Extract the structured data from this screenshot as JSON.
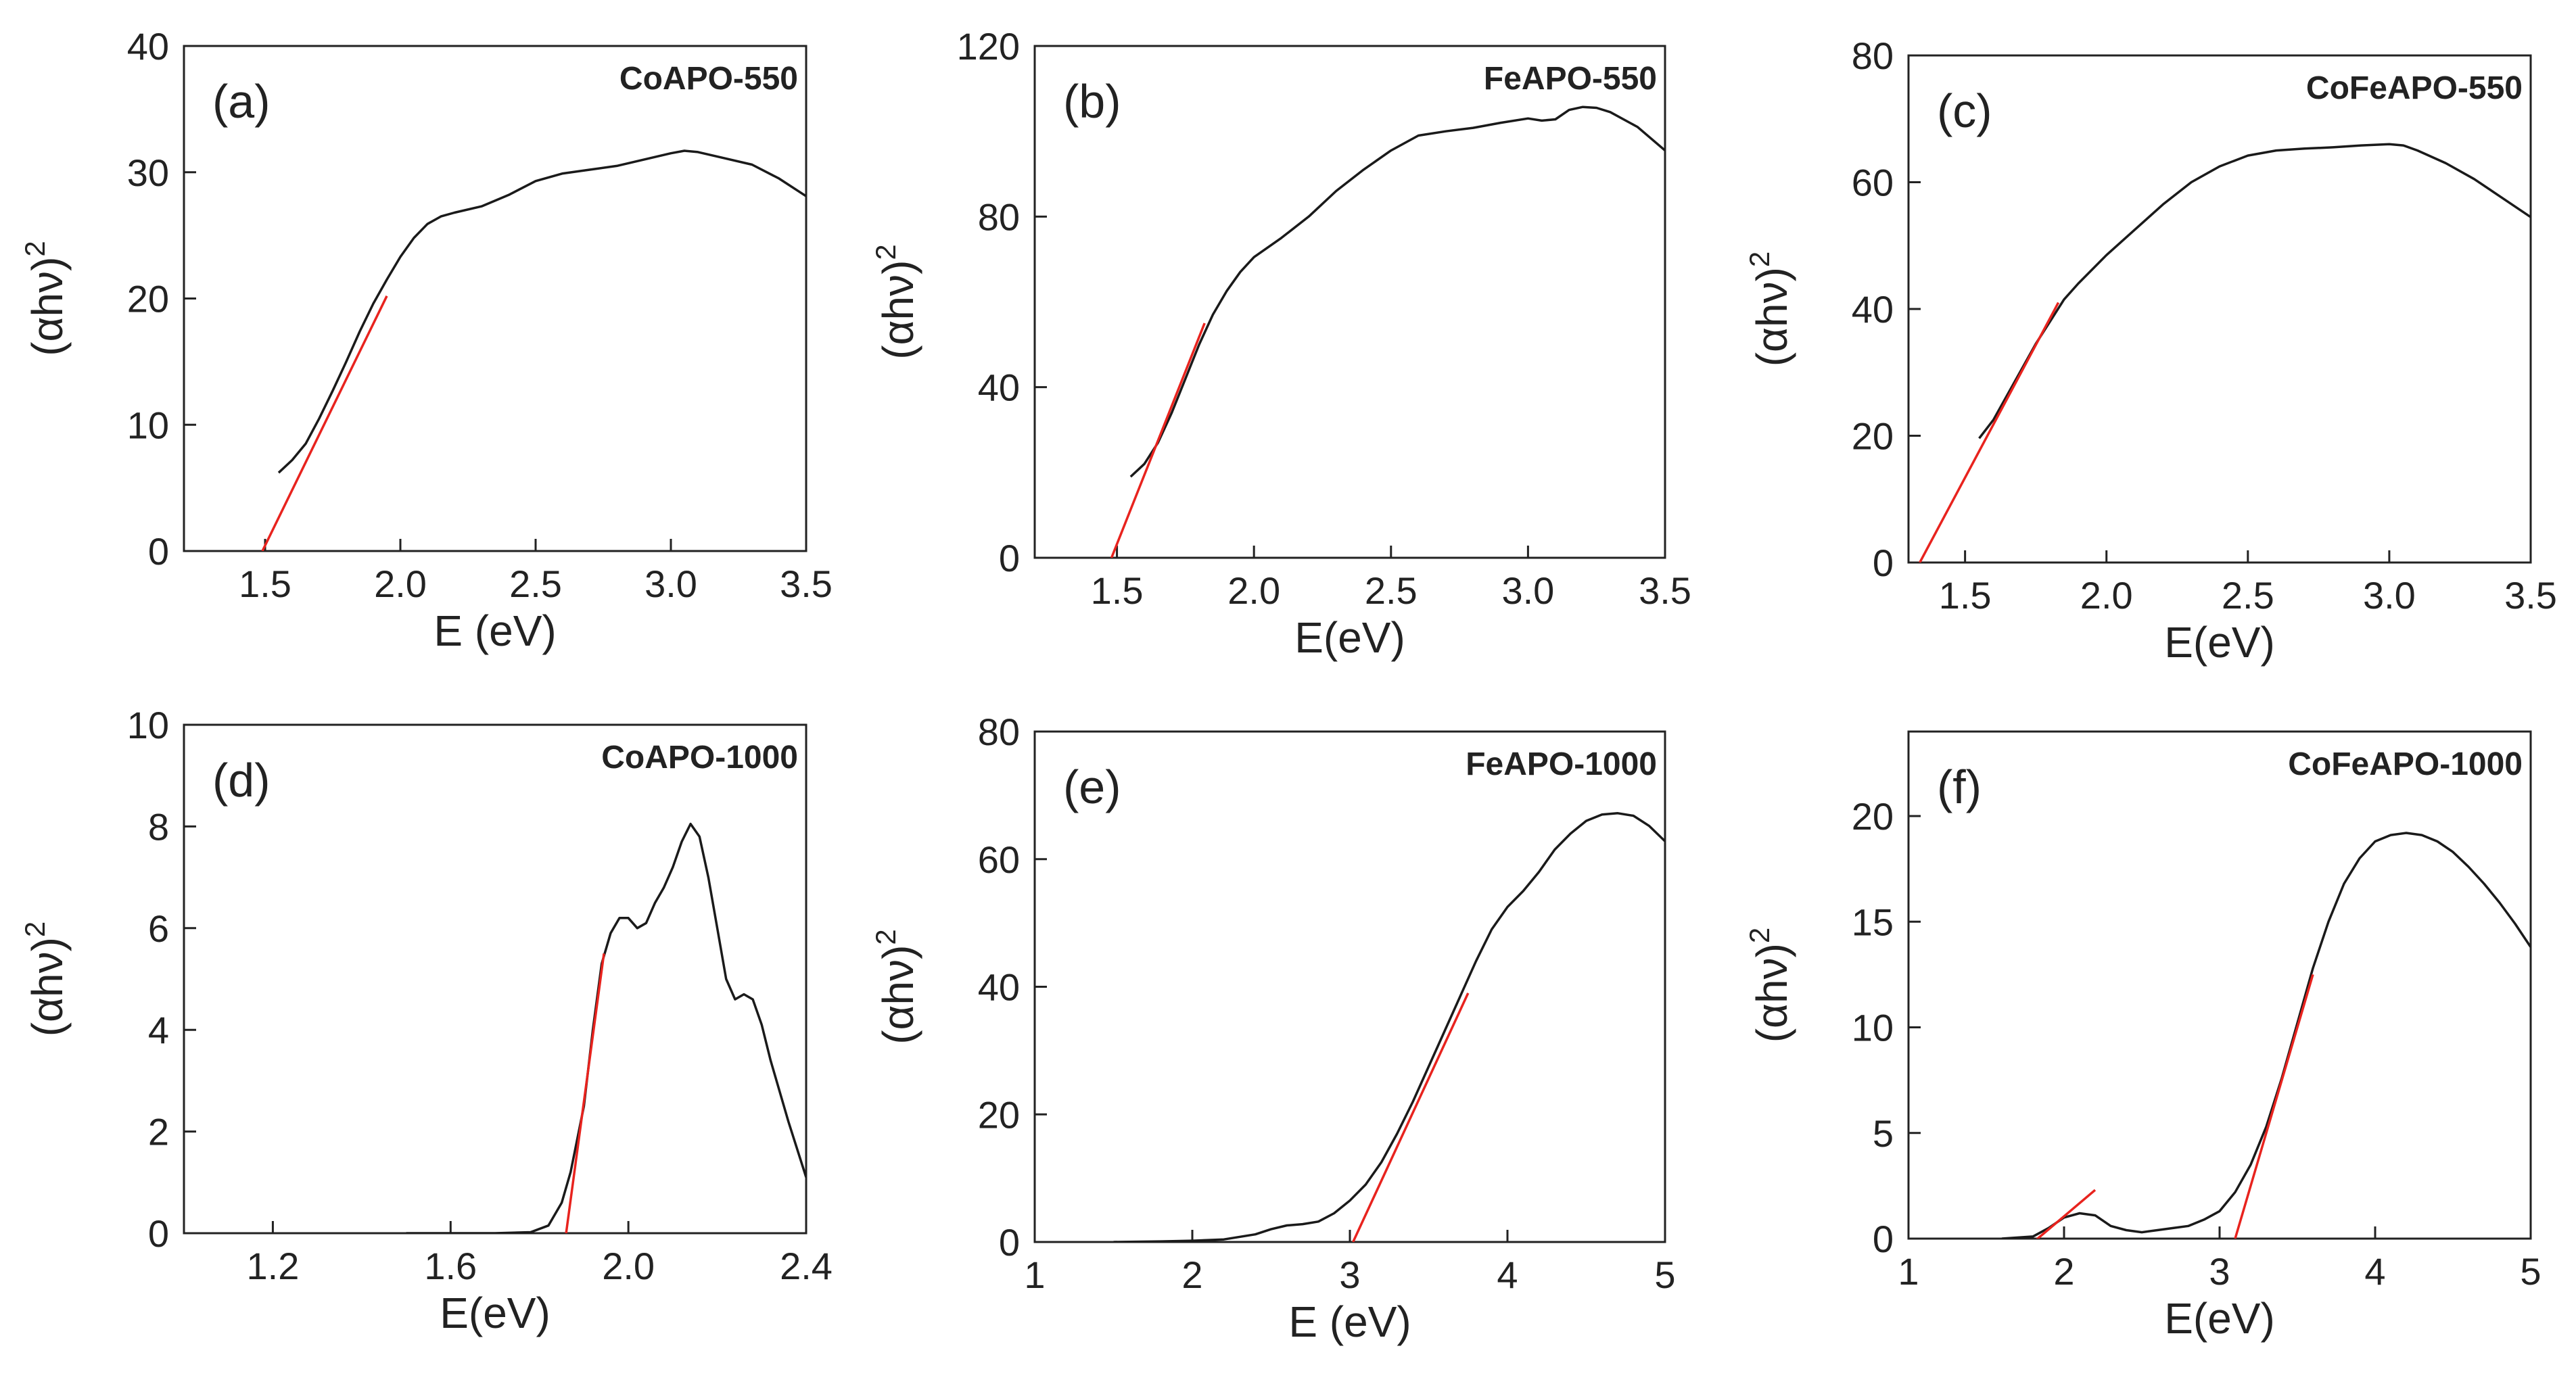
{
  "chart_data": [
    {
      "type": "line",
      "panel": "(a)",
      "title": "CoAPO-550",
      "xlabel": "E (eV)",
      "ylabel": "(αhν)",
      "ylabel_sup": "2",
      "xlim": [
        1.2,
        3.5
      ],
      "ylim": [
        0,
        40
      ],
      "xticks": [
        1.5,
        2.0,
        2.5,
        3.0,
        3.5
      ],
      "xtick_labels": [
        "1.5",
        "2.0",
        "2.5",
        "3.0",
        "3.5"
      ],
      "yticks": [
        0,
        10,
        20,
        30,
        40
      ],
      "ytick_labels": [
        "0",
        "10",
        "20",
        "30",
        "40"
      ],
      "series": [
        {
          "name": "CoAPO-550",
          "color": "#1a1a1a",
          "x": [
            1.55,
            1.6,
            1.65,
            1.7,
            1.75,
            1.8,
            1.85,
            1.9,
            1.95,
            2.0,
            2.05,
            2.1,
            2.15,
            2.2,
            2.3,
            2.4,
            2.5,
            2.6,
            2.7,
            2.8,
            2.9,
            3.0,
            3.05,
            3.1,
            3.2,
            3.3,
            3.4,
            3.5
          ],
          "y": [
            6.2,
            7.2,
            8.5,
            10.5,
            12.7,
            15.0,
            17.4,
            19.6,
            21.5,
            23.3,
            24.8,
            25.9,
            26.5,
            26.8,
            27.3,
            28.2,
            29.3,
            29.9,
            30.2,
            30.5,
            31.0,
            31.5,
            31.7,
            31.6,
            31.1,
            30.6,
            29.5,
            28.1
          ]
        },
        {
          "name": "Tangent",
          "color": "#e8231e",
          "x": [
            1.49,
            1.95
          ],
          "y": [
            0.0,
            20.2
          ]
        }
      ]
    },
    {
      "type": "line",
      "panel": "(b)",
      "title": "FeAPO-550",
      "xlabel": "E(eV)",
      "ylabel": "(αhν)",
      "ylabel_sup": "2",
      "xlim": [
        1.2,
        3.5
      ],
      "ylim": [
        0,
        120
      ],
      "xticks": [
        1.5,
        2.0,
        2.5,
        3.0,
        3.5
      ],
      "xtick_labels": [
        "1.5",
        "2.0",
        "2.5",
        "3.0",
        "3.5"
      ],
      "yticks": [
        0,
        40,
        80,
        120
      ],
      "ytick_labels": [
        "0",
        "40",
        "80",
        "120"
      ],
      "series": [
        {
          "name": "FeAPO-550",
          "color": "#1a1a1a",
          "x": [
            1.55,
            1.6,
            1.65,
            1.7,
            1.75,
            1.8,
            1.85,
            1.9,
            1.95,
            2.0,
            2.1,
            2.2,
            2.3,
            2.4,
            2.5,
            2.6,
            2.7,
            2.8,
            2.9,
            3.0,
            3.05,
            3.1,
            3.15,
            3.2,
            3.25,
            3.3,
            3.4,
            3.5
          ],
          "y": [
            19.0,
            22.0,
            27.0,
            34.0,
            42.0,
            50.0,
            57.0,
            62.5,
            67.0,
            70.5,
            75.0,
            80.0,
            86.0,
            91.0,
            95.5,
            99.0,
            100.0,
            100.8,
            102.0,
            103.0,
            102.5,
            102.8,
            105.0,
            105.7,
            105.5,
            104.5,
            101.0,
            95.5
          ]
        },
        {
          "name": "Tangent",
          "color": "#e8231e",
          "x": [
            1.48,
            1.82
          ],
          "y": [
            0.0,
            55.0
          ]
        }
      ]
    },
    {
      "type": "line",
      "panel": "(c)",
      "title": "CoFeAPO-550",
      "xlabel": "E(eV)",
      "ylabel": "(αhν)",
      "ylabel_sup": "2",
      "xlim": [
        1.3,
        3.5
      ],
      "ylim": [
        0,
        80
      ],
      "xticks": [
        1.5,
        2.0,
        2.5,
        3.0,
        3.5
      ],
      "xtick_labels": [
        "1.5",
        "2.0",
        "2.5",
        "3.0",
        "3.5"
      ],
      "yticks": [
        0,
        20,
        40,
        60,
        80
      ],
      "ytick_labels": [
        "0",
        "20",
        "40",
        "60",
        "80"
      ],
      "series": [
        {
          "name": "CoFeAPO-550",
          "color": "#1a1a1a",
          "x": [
            1.55,
            1.6,
            1.65,
            1.7,
            1.75,
            1.8,
            1.85,
            1.9,
            2.0,
            2.1,
            2.2,
            2.3,
            2.4,
            2.5,
            2.6,
            2.7,
            2.8,
            2.9,
            3.0,
            3.05,
            3.1,
            3.2,
            3.3,
            3.4,
            3.5
          ],
          "y": [
            19.6,
            22.5,
            26.5,
            30.5,
            34.5,
            38.0,
            41.5,
            44.0,
            48.5,
            52.5,
            56.5,
            60.0,
            62.5,
            64.2,
            65.0,
            65.3,
            65.5,
            65.8,
            66.0,
            65.8,
            65.0,
            63.0,
            60.5,
            57.5,
            54.5
          ]
        },
        {
          "name": "Tangent",
          "color": "#e8231e",
          "x": [
            1.34,
            1.83
          ],
          "y": [
            0.0,
            41.0
          ]
        }
      ]
    },
    {
      "type": "line",
      "panel": "(d)",
      "title": "CoAPO-1000",
      "xlabel": "E(eV)",
      "ylabel": "(αhν)",
      "ylabel_sup": "2",
      "xlim": [
        1.0,
        2.4
      ],
      "ylim": [
        0,
        10
      ],
      "xticks": [
        1.2,
        1.6,
        2.0,
        2.4
      ],
      "xtick_labels": [
        "1.2",
        "1.6",
        "2.0",
        "2.4"
      ],
      "yticks": [
        0,
        2,
        4,
        6,
        8,
        10
      ],
      "ytick_labels": [
        "0",
        "2",
        "4",
        "6",
        "8",
        "10"
      ],
      "series": [
        {
          "name": "CoAPO-1000",
          "color": "#1a1a1a",
          "x": [
            1.5,
            1.6,
            1.7,
            1.78,
            1.82,
            1.85,
            1.87,
            1.9,
            1.92,
            1.94,
            1.96,
            1.98,
            2.0,
            2.02,
            2.04,
            2.06,
            2.08,
            2.1,
            2.12,
            2.14,
            2.16,
            2.18,
            2.2,
            2.22,
            2.24,
            2.26,
            2.28,
            2.3,
            2.32,
            2.36,
            2.4
          ],
          "y": [
            0.0,
            0.0,
            0.0,
            0.02,
            0.15,
            0.6,
            1.2,
            2.5,
            4.0,
            5.3,
            5.9,
            6.2,
            6.2,
            6.0,
            6.1,
            6.5,
            6.8,
            7.2,
            7.7,
            8.05,
            7.8,
            7.0,
            6.0,
            5.0,
            4.6,
            4.7,
            4.6,
            4.1,
            3.4,
            2.2,
            1.1
          ]
        },
        {
          "name": "Tangent",
          "color": "#e8231e",
          "x": [
            1.86,
            1.945
          ],
          "y": [
            0.0,
            5.5
          ]
        }
      ]
    },
    {
      "type": "line",
      "panel": "(e)",
      "title": "FeAPO-1000",
      "xlabel": "E (eV)",
      "ylabel": "(αhν)",
      "ylabel_sup": "2",
      "xlim": [
        1,
        5
      ],
      "ylim": [
        0,
        80
      ],
      "xticks": [
        1,
        2,
        3,
        4,
        5
      ],
      "xtick_labels": [
        "1",
        "2",
        "3",
        "4",
        "5"
      ],
      "yticks": [
        0,
        20,
        40,
        60,
        80
      ],
      "ytick_labels": [
        "0",
        "20",
        "40",
        "60",
        "80"
      ],
      "series": [
        {
          "name": "FeAPO-1000",
          "color": "#1a1a1a",
          "x": [
            1.5,
            1.8,
            2.0,
            2.2,
            2.4,
            2.5,
            2.6,
            2.7,
            2.8,
            2.9,
            3.0,
            3.1,
            3.2,
            3.3,
            3.4,
            3.5,
            3.6,
            3.7,
            3.8,
            3.9,
            4.0,
            4.1,
            4.2,
            4.3,
            4.4,
            4.5,
            4.6,
            4.7,
            4.8,
            4.9,
            5.0
          ],
          "y": [
            0.0,
            0.1,
            0.2,
            0.4,
            1.2,
            2.0,
            2.6,
            2.8,
            3.2,
            4.5,
            6.5,
            9.0,
            12.5,
            17.0,
            22.0,
            27.5,
            33.0,
            38.5,
            44.0,
            49.0,
            52.5,
            55.0,
            58.0,
            61.5,
            64.0,
            66.0,
            67.0,
            67.2,
            66.8,
            65.2,
            62.8
          ]
        },
        {
          "name": "Tangent",
          "color": "#e8231e",
          "x": [
            3.02,
            3.75
          ],
          "y": [
            0.0,
            39.0
          ]
        }
      ]
    },
    {
      "type": "line",
      "panel": "(f)",
      "title": "CoFeAPO-1000",
      "xlabel": "E(eV)",
      "ylabel": "(αhν)",
      "ylabel_sup": "2",
      "xlim": [
        1,
        5
      ],
      "ylim": [
        0,
        24
      ],
      "xticks": [
        1,
        2,
        3,
        4,
        5
      ],
      "xtick_labels": [
        "1",
        "2",
        "3",
        "4",
        "5"
      ],
      "yticks": [
        0,
        5,
        10,
        15,
        20
      ],
      "ytick_labels": [
        "0",
        "5",
        "10",
        "15",
        "20"
      ],
      "series": [
        {
          "name": "CoFeAPO-1000",
          "color": "#1a1a1a",
          "x": [
            1.6,
            1.8,
            1.9,
            2.0,
            2.1,
            2.2,
            2.3,
            2.4,
            2.5,
            2.6,
            2.7,
            2.8,
            2.9,
            3.0,
            3.1,
            3.2,
            3.3,
            3.4,
            3.5,
            3.6,
            3.7,
            3.8,
            3.9,
            4.0,
            4.1,
            4.2,
            4.3,
            4.4,
            4.5,
            4.6,
            4.7,
            4.8,
            4.9,
            5.0
          ],
          "y": [
            0.0,
            0.1,
            0.5,
            1.0,
            1.2,
            1.1,
            0.6,
            0.4,
            0.3,
            0.4,
            0.5,
            0.6,
            0.9,
            1.3,
            2.2,
            3.5,
            5.3,
            7.6,
            10.2,
            12.8,
            15.0,
            16.8,
            18.0,
            18.8,
            19.1,
            19.2,
            19.1,
            18.8,
            18.3,
            17.6,
            16.8,
            15.9,
            14.9,
            13.8
          ]
        },
        {
          "name": "Tangent",
          "color": "#e8231e",
          "x": [
            3.1,
            3.6
          ],
          "y": [
            0.0,
            12.5
          ]
        },
        {
          "name": "Tangent",
          "color": "#e8231e",
          "x": [
            1.75,
            2.2
          ],
          "y": [
            -0.5,
            2.3
          ]
        }
      ]
    }
  ]
}
